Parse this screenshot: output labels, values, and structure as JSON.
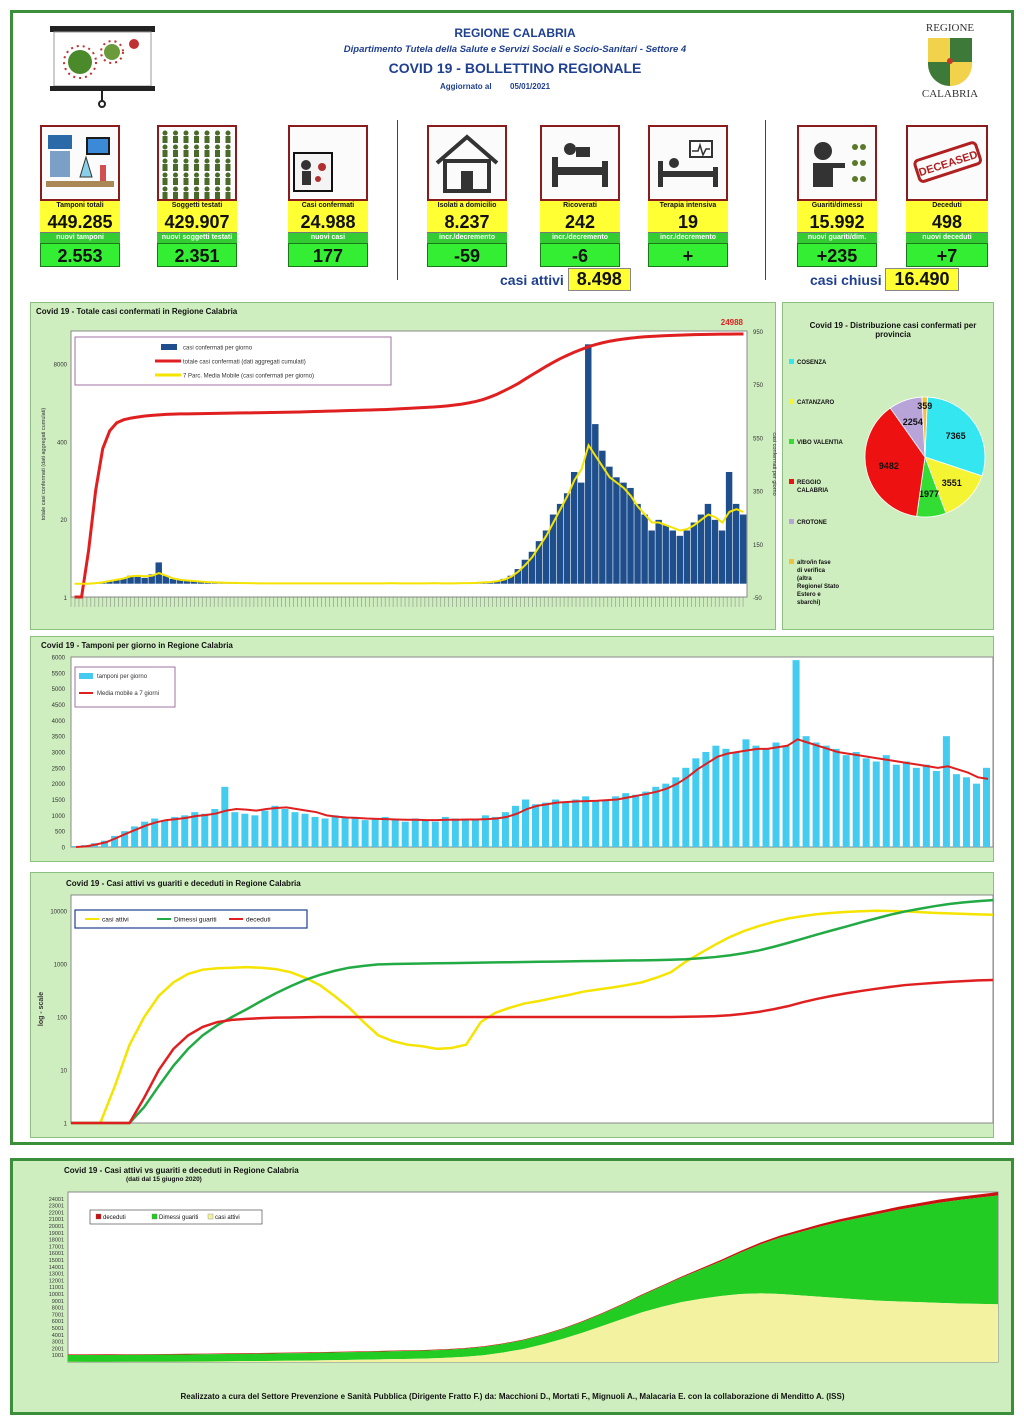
{
  "header": {
    "region": "REGIONE CALABRIA",
    "department": "Dipartimento Tutela della Salute e Servizi Sociali e Socio-Sanitari - Settore 4",
    "title": "COVID 19 - BOLLETTINO REGIONALE",
    "updated_label": "Aggiornato al",
    "updated_date": "05/01/2021",
    "crest_top": "REGIONE",
    "crest_bottom": "CALABRIA"
  },
  "tiles": [
    {
      "label": "Tamponi totali",
      "value": "449.285",
      "sublabel": "nuovi tamponi",
      "subvalue": "2.553",
      "icon": "lab-icon"
    },
    {
      "label": "Soggetti testati",
      "value": "429.907",
      "sublabel": "nuovi soggetti testati",
      "subvalue": "2.351",
      "icon": "people-grid-icon"
    },
    {
      "label": "Casi confermati",
      "value": "24.988",
      "sublabel": "nuovi casi",
      "subvalue": "177",
      "icon": "infected-person-icon"
    },
    {
      "label": "Isolati a domicilio",
      "value": "8.237",
      "sublabel": "incr./decremento",
      "subvalue": "-59",
      "icon": "house-icon"
    },
    {
      "label": "Ricoverati",
      "value": "242",
      "sublabel": "incr./decremento",
      "subvalue": "-6",
      "icon": "hospital-bed-icon"
    },
    {
      "label": "Terapia intensiva",
      "value": "19",
      "sublabel": "incr./decremento",
      "subvalue": "+",
      "icon": "icu-icon"
    },
    {
      "label": "Guariti/dimessi",
      "value": "15.992",
      "sublabel": "nuovi guariti/dim.",
      "subvalue": "+235",
      "icon": "recovered-icon"
    },
    {
      "label": "Deceduti",
      "value": "498",
      "sublabel": "nuovi deceduti",
      "subvalue": "+7",
      "icon": "deceased-stamp-icon"
    }
  ],
  "deceased_stamp": "DECEASED",
  "casi_attivi": {
    "label": "casi attivi",
    "value": "8.498"
  },
  "casi_chiusi": {
    "label": "casi chiusi",
    "value": "16.490"
  },
  "chart_data": [
    {
      "type": "bar",
      "title": "Covid 19 - Totale casi confermati in Regione Calabria",
      "ylabel": "totale casi confermati (dati aggregati cumulati)",
      "ylabel_right": "casi confermati per giorno",
      "yticks_left": [
        "1",
        "20",
        "400",
        "8000"
      ],
      "yticks_right": [
        "-50",
        "150",
        "350",
        "550",
        "750",
        "950"
      ],
      "annotation": "24988",
      "series": [
        {
          "name": "casi confermati per giorno",
          "color": "#1f4e8c",
          "values": [
            0,
            0,
            0,
            2,
            5,
            8,
            14,
            20,
            30,
            26,
            22,
            35,
            80,
            30,
            18,
            15,
            12,
            10,
            8,
            6,
            5,
            4,
            3,
            3,
            2,
            2,
            1,
            1,
            1,
            1,
            1,
            1,
            1,
            1,
            1,
            1,
            1,
            1,
            1,
            1,
            1,
            1,
            1,
            1,
            1,
            2,
            1,
            1,
            1,
            1,
            1,
            2,
            1,
            1,
            1,
            2,
            2,
            3,
            5,
            6,
            10,
            18,
            30,
            55,
            90,
            120,
            160,
            200,
            260,
            300,
            340,
            420,
            380,
            900,
            600,
            500,
            440,
            400,
            380,
            360,
            300,
            260,
            200,
            240,
            220,
            200,
            180,
            200,
            230,
            260,
            300,
            240,
            200,
            420,
            300,
            260
          ]
        },
        {
          "name": "totale casi confermati (dati aggregati cumulati)",
          "color": "#e02020",
          "values": [
            1,
            1,
            6,
            60,
            300,
            600,
            820,
            920,
            980,
            1020,
            1060,
            1090,
            1110,
            1130,
            1140,
            1150,
            1155,
            1160,
            1165,
            1170,
            1175,
            1180,
            1185,
            1190,
            1195,
            1200,
            1205,
            1210,
            1215,
            1220,
            1225,
            1230,
            1240,
            1250,
            1260,
            1270,
            1280,
            1290,
            1300,
            1310,
            1320,
            1330,
            1340,
            1350,
            1360,
            1380,
            1400,
            1420,
            1440,
            1460,
            1480,
            1500,
            1530,
            1570,
            1620,
            1680,
            1760,
            1860,
            2000,
            2200,
            2450,
            2800,
            3200,
            3700,
            4400,
            5200,
            6100,
            7200,
            8400,
            9700,
            11000,
            12400,
            13800,
            15300,
            16600,
            17800,
            18900,
            19800,
            20600,
            21300,
            21900,
            22400,
            22800,
            23100,
            23400,
            23700,
            23900,
            24100,
            24300,
            24450,
            24600,
            24700,
            24800,
            24880,
            24950,
            24988
          ]
        },
        {
          "name": "7 Parc. Media Mobile (casi confermati per giorno)",
          "color": "#f4e400",
          "values": [
            0,
            0,
            0,
            2,
            5,
            10,
            15,
            20,
            28,
            30,
            28,
            30,
            40,
            30,
            20,
            15,
            12,
            10,
            8,
            6,
            5,
            4,
            3,
            3,
            2,
            2,
            1,
            1,
            1,
            1,
            1,
            1,
            1,
            1,
            1,
            1,
            1,
            1,
            1,
            1,
            1,
            1,
            1,
            1,
            1,
            2,
            1,
            1,
            1,
            1,
            1,
            2,
            1,
            1,
            1,
            2,
            2,
            3,
            5,
            6,
            9,
            15,
            26,
            45,
            70,
            100,
            140,
            180,
            230,
            280,
            330,
            390,
            430,
            520,
            480,
            440,
            400,
            380,
            360,
            330,
            290,
            260,
            230,
            230,
            220,
            210,
            200,
            205,
            220,
            240,
            260,
            250,
            230,
            270,
            280,
            270
          ]
        }
      ]
    },
    {
      "type": "pie",
      "title": "Covid 19 - Distribuzione casi confermati per provincia",
      "slices": [
        {
          "name": "COSENZA",
          "value": 7365,
          "color": "#33e6f0"
        },
        {
          "name": "CATANZARO",
          "value": 3551,
          "color": "#f4f433"
        },
        {
          "name": "VIBO VALENTIA",
          "value": 1977,
          "color": "#33dd33"
        },
        {
          "name": "REGGIO CALABRIA",
          "value": 9482,
          "color": "#ee1111"
        },
        {
          "name": "CROTONE",
          "value": 2254,
          "color": "#b8a4d8"
        },
        {
          "name": "altro/in fase di verifica (altra Regione/ Stato Estero e sbarchi)",
          "value": 359,
          "color": "#f0c040"
        }
      ]
    },
    {
      "type": "bar",
      "title": "Covid 19 - Tamponi per giorno in Regione Calabria",
      "ylim": [
        0,
        6000
      ],
      "yticks": [
        "0",
        "500",
        "1000",
        "1500",
        "2000",
        "2500",
        "3000",
        "3500",
        "4000",
        "4500",
        "5000",
        "5500",
        "6000"
      ],
      "series": [
        {
          "name": "tamponi per giorno",
          "color": "#44ccf0",
          "values": [
            30,
            60,
            120,
            200,
            350,
            500,
            650,
            800,
            900,
            850,
            950,
            1000,
            1100,
            1050,
            1200,
            1900,
            1100,
            1050,
            1000,
            1150,
            1300,
            1200,
            1100,
            1050,
            950,
            900,
            1000,
            950,
            900,
            850,
            900,
            950,
            850,
            800,
            900,
            850,
            800,
            950,
            900,
            850,
            900,
            1000,
            950,
            1100,
            1300,
            1500,
            1350,
            1400,
            1500,
            1400,
            1500,
            1600,
            1450,
            1500,
            1600,
            1700,
            1650,
            1750,
            1900,
            2000,
            2200,
            2500,
            2800,
            3000,
            3200,
            3100,
            3000,
            3400,
            3200,
            3100,
            3300,
            3200,
            5900,
            3500,
            3300,
            3200,
            3100,
            2900,
            3000,
            2800,
            2700,
            2900,
            2600,
            2700,
            2500,
            2600,
            2400,
            3500,
            2300,
            2200,
            2000,
            2500
          ]
        },
        {
          "name": "Media mobile a 7 giorni",
          "color": "#e02020",
          "values": [
            0,
            20,
            80,
            150,
            280,
            420,
            550,
            680,
            780,
            850,
            880,
            920,
            980,
            1010,
            1060,
            1150,
            1200,
            1180,
            1150,
            1200,
            1230,
            1250,
            1200,
            1150,
            1100,
            1000,
            960,
            930,
            920,
            900,
            890,
            880,
            870,
            860,
            860,
            850,
            850,
            860,
            860,
            870,
            870,
            880,
            900,
            950,
            1050,
            1200,
            1300,
            1350,
            1400,
            1420,
            1440,
            1450,
            1460,
            1480,
            1500,
            1560,
            1620,
            1680,
            1750,
            1850,
            2000,
            2200,
            2450,
            2650,
            2850,
            2950,
            3000,
            3050,
            3100,
            3100,
            3150,
            3200,
            3400,
            3300,
            3200,
            3100,
            3000,
            2950,
            2900,
            2850,
            2800,
            2750,
            2700,
            2650,
            2600,
            2550,
            2500,
            2550,
            2450,
            2350,
            2200,
            2150
          ]
        }
      ]
    },
    {
      "type": "line",
      "title": "Covid 19 - Casi attivi vs guariti e deceduti in Regione Calabria",
      "ylabel": "log - scale",
      "yscale": "log",
      "yticks": [
        "1",
        "10",
        "100",
        "1000",
        "10000"
      ],
      "series": [
        {
          "name": "casi attivi",
          "color": "#f4e400",
          "values": [
            1,
            1,
            1,
            5,
            30,
            100,
            250,
            450,
            650,
            780,
            830,
            850,
            870,
            850,
            800,
            700,
            550,
            400,
            250,
            150,
            80,
            45,
            35,
            30,
            28,
            25,
            26,
            30,
            80,
            120,
            150,
            180,
            200,
            230,
            260,
            300,
            330,
            360,
            400,
            450,
            550,
            700,
            1100,
            1600,
            2300,
            3200,
            4200,
            5200,
            6200,
            7200,
            8000,
            8700,
            9200,
            9600,
            9900,
            10100,
            10000,
            9800,
            9500,
            9200,
            9000,
            8800,
            8600,
            8500
          ]
        },
        {
          "name": "Dimessi guariti",
          "color": "#22aa44",
          "values": [
            1,
            1,
            1,
            1,
            1,
            2,
            5,
            12,
            25,
            45,
            70,
            100,
            140,
            200,
            280,
            380,
            500,
            620,
            740,
            850,
            920,
            980,
            1000,
            1010,
            1020,
            1030,
            1040,
            1050,
            1060,
            1070,
            1080,
            1090,
            1100,
            1110,
            1120,
            1130,
            1140,
            1150,
            1160,
            1170,
            1180,
            1200,
            1230,
            1280,
            1350,
            1450,
            1600,
            1800,
            2100,
            2500,
            3000,
            3600,
            4300,
            5100,
            6100,
            7200,
            8500,
            9800,
            11000,
            12300,
            13500,
            14500,
            15300,
            15992
          ]
        },
        {
          "name": "deceduti",
          "color": "#e02020",
          "values": [
            1,
            1,
            1,
            1,
            1,
            3,
            10,
            25,
            45,
            65,
            80,
            88,
            92,
            95,
            97,
            98,
            99,
            100,
            100,
            100,
            100,
            100,
            100,
            100,
            100,
            100,
            100,
            100,
            100,
            100,
            100,
            100,
            100,
            100,
            100,
            100,
            100,
            100,
            100,
            100,
            100,
            100,
            101,
            102,
            104,
            108,
            115,
            125,
            140,
            160,
            190,
            220,
            250,
            280,
            310,
            340,
            370,
            400,
            420,
            440,
            460,
            475,
            490,
            498
          ]
        }
      ]
    },
    {
      "type": "area",
      "title": "Covid 19 - Casi attivi vs guariti e deceduti in Regione Calabria",
      "subtitle": "(dati dal 15 giugno 2020)",
      "yticks": [
        "1001",
        "2001",
        "3001",
        "4001",
        "5001",
        "6001",
        "7001",
        "8001",
        "9001",
        "10001",
        "11001",
        "12001",
        "13001",
        "14001",
        "15001",
        "16001",
        "17001",
        "18001",
        "19001",
        "20001",
        "21001",
        "22001",
        "23001",
        "24001"
      ],
      "series": [
        {
          "name": "deceduti",
          "color": "#cc1111",
          "values": [
            97,
            97,
            97,
            97,
            97,
            97,
            97,
            97,
            97,
            97,
            97,
            97,
            97,
            97,
            97,
            97,
            97,
            97,
            97,
            97,
            97,
            97,
            98,
            99,
            100,
            102,
            105,
            110,
            118,
            128,
            140,
            160,
            185,
            210,
            240,
            270,
            300,
            330,
            360,
            390,
            410,
            430,
            445,
            460,
            470,
            480,
            490,
            498
          ]
        },
        {
          "name": "Dimessi guariti",
          "color": "#22cc22",
          "values": [
            1000,
            1000,
            1010,
            1020,
            1030,
            1040,
            1050,
            1060,
            1070,
            1080,
            1090,
            1100,
            1110,
            1120,
            1130,
            1140,
            1150,
            1160,
            1170,
            1180,
            1200,
            1220,
            1250,
            1290,
            1350,
            1450,
            1600,
            1800,
            2100,
            2500,
            3000,
            3600,
            4300,
            5100,
            6100,
            7200,
            8300,
            9300,
            10300,
            11200,
            12000,
            12800,
            13500,
            14100,
            14700,
            15200,
            15600,
            15992
          ]
        },
        {
          "name": "casi attivi",
          "color": "#f2f2a0",
          "values": [
            30,
            25,
            26,
            28,
            30,
            40,
            60,
            80,
            100,
            120,
            150,
            180,
            200,
            250,
            300,
            350,
            400,
            450,
            500,
            600,
            750,
            1000,
            1400,
            1900,
            2600,
            3400,
            4300,
            5300,
            6300,
            7300,
            8100,
            8800,
            9300,
            9700,
            10000,
            10100,
            10000,
            9800,
            9600,
            9400,
            9200,
            9000,
            8900,
            8800,
            8700,
            8600,
            8550,
            8498
          ]
        }
      ]
    }
  ],
  "footer": "Realizzato a cura del Settore Prevenzione e Sanità Pubblica (Dirigente Fratto F.) da:  Macchioni D., Mortati F., Mignuoli A., Malacaria E. con la collaborazione di Menditto A. (ISS)"
}
